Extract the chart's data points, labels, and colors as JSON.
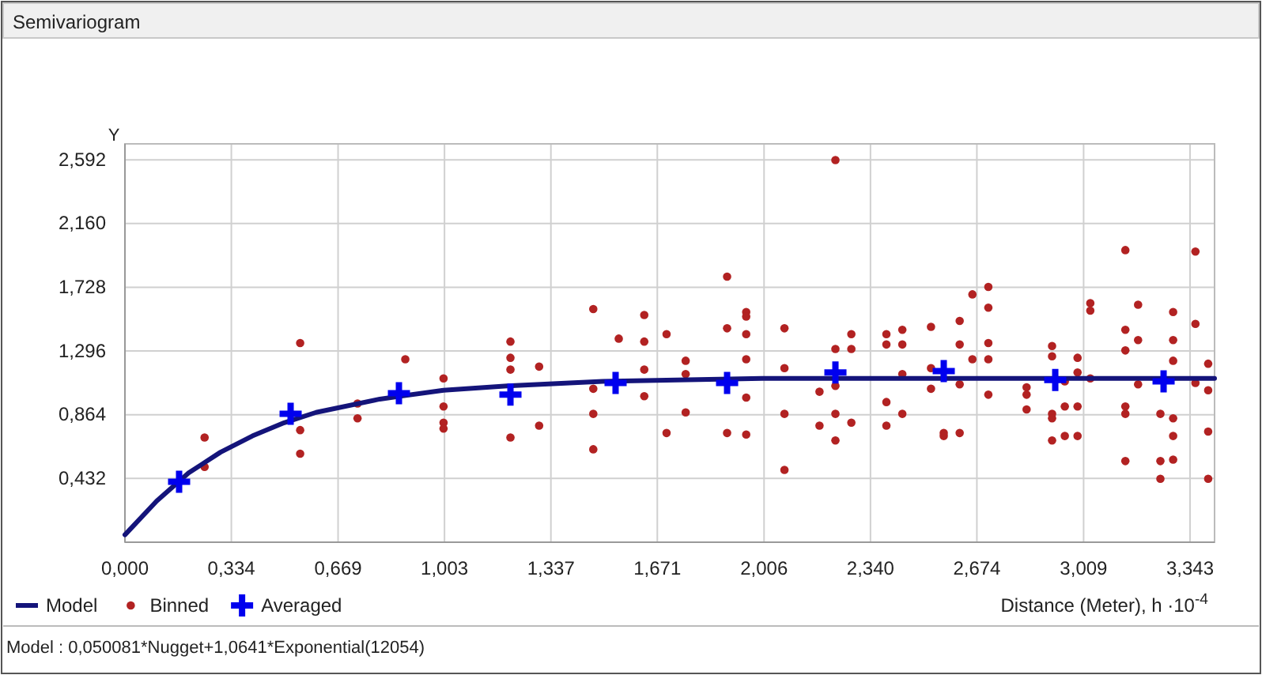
{
  "chart_data": {
    "type": "scatter",
    "title": "Semivariogram",
    "ylabel": "Y",
    "xlabel": "Distance (Meter), h ·10$^{-4}$",
    "annotations": [
      "Model : 0,050081*Nugget+1,0641*Exponential(12054)"
    ],
    "xlim": [
      0,
      3.42
    ],
    "ylim": [
      0,
      2.7
    ],
    "xticks": [
      {
        "value": 0,
        "label": "0,000"
      },
      {
        "value": 0.334,
        "label": "0,334"
      },
      {
        "value": 0.669,
        "label": "0,669"
      },
      {
        "value": 1.003,
        "label": "1,003"
      },
      {
        "value": 1.337,
        "label": "1,337"
      },
      {
        "value": 1.671,
        "label": "1,671"
      },
      {
        "value": 2.006,
        "label": "2,006"
      },
      {
        "value": 2.34,
        "label": "2,340"
      },
      {
        "value": 2.674,
        "label": "2,674"
      },
      {
        "value": 3.009,
        "label": "3,009"
      },
      {
        "value": 3.343,
        "label": "3,343"
      }
    ],
    "yticks": [
      {
        "value": 0.432,
        "label": "0,432"
      },
      {
        "value": 0.864,
        "label": "0,864"
      },
      {
        "value": 1.296,
        "label": "1,296"
      },
      {
        "value": 1.728,
        "label": "1,728"
      },
      {
        "value": 2.16,
        "label": "2,160"
      },
      {
        "value": 2.592,
        "label": "2,592"
      }
    ],
    "grid": true,
    "legend": "bottom left",
    "series": [
      {
        "name": "Model",
        "type": "line",
        "color": "#14147a",
        "marker": "none",
        "line_style": "solid",
        "x": [
          0,
          0.1,
          0.2,
          0.3,
          0.4,
          0.5,
          0.6,
          0.8,
          1.0,
          1.2,
          1.5,
          2.0,
          2.5,
          3.0,
          3.42
        ],
        "values": [
          0.05,
          0.28,
          0.47,
          0.61,
          0.72,
          0.81,
          0.88,
          0.97,
          1.03,
          1.06,
          1.09,
          1.11,
          1.11,
          1.11,
          1.11
        ]
      },
      {
        "name": "Binned",
        "color": "#b22222",
        "marker": "circle",
        "x": [
          0.25,
          0.25,
          0.55,
          0.55,
          0.55,
          0.73,
          0.73,
          0.88,
          1.0,
          1.0,
          1.0,
          1.0,
          1.21,
          1.21,
          1.21,
          1.21,
          1.3,
          1.3,
          1.47,
          1.47,
          1.47,
          1.47,
          1.55,
          1.63,
          1.63,
          1.63,
          1.63,
          1.7,
          1.7,
          1.76,
          1.76,
          1.76,
          1.89,
          1.89,
          1.89,
          1.95,
          1.95,
          1.95,
          1.95,
          1.95,
          1.95,
          2.07,
          2.07,
          2.07,
          2.07,
          2.18,
          2.18,
          2.23,
          2.23,
          2.23,
          2.23,
          2.23,
          2.28,
          2.28,
          2.28,
          2.39,
          2.39,
          2.39,
          2.39,
          2.44,
          2.44,
          2.44,
          2.44,
          2.53,
          2.53,
          2.53,
          2.57,
          2.57,
          2.62,
          2.62,
          2.62,
          2.62,
          2.66,
          2.66,
          2.71,
          2.71,
          2.71,
          2.71,
          2.71,
          2.83,
          2.83,
          2.83,
          2.91,
          2.91,
          2.91,
          2.91,
          2.91,
          2.95,
          2.95,
          2.95,
          2.99,
          2.99,
          2.99,
          2.99,
          3.03,
          3.03,
          3.03,
          3.14,
          3.14,
          3.14,
          3.14,
          3.14,
          3.14,
          3.18,
          3.18,
          3.18,
          3.25,
          3.25,
          3.25,
          3.29,
          3.29,
          3.29,
          3.29,
          3.29,
          3.29,
          3.36,
          3.36,
          3.36,
          3.4,
          3.4,
          3.4,
          3.4
        ],
        "values": [
          0.71,
          0.51,
          1.35,
          0.76,
          0.6,
          0.84,
          0.94,
          1.24,
          1.11,
          0.92,
          0.81,
          0.77,
          1.36,
          1.25,
          1.17,
          0.71,
          1.19,
          0.79,
          1.58,
          1.04,
          0.87,
          0.63,
          1.38,
          1.54,
          1.36,
          1.17,
          0.99,
          1.41,
          0.74,
          1.23,
          1.14,
          0.88,
          1.8,
          1.45,
          0.74,
          1.56,
          1.53,
          1.41,
          1.24,
          0.98,
          0.73,
          1.45,
          1.18,
          0.87,
          0.49,
          1.02,
          0.79,
          2.59,
          1.31,
          1.06,
          0.87,
          0.69,
          1.41,
          1.31,
          0.81,
          1.41,
          1.34,
          0.95,
          0.79,
          1.44,
          1.34,
          1.14,
          0.87,
          1.46,
          1.18,
          1.04,
          0.74,
          0.72,
          1.5,
          1.34,
          1.07,
          0.74,
          1.68,
          1.24,
          1.73,
          1.59,
          1.35,
          1.24,
          1.0,
          1.05,
          1.0,
          0.9,
          1.33,
          1.26,
          0.87,
          0.84,
          0.69,
          1.09,
          0.92,
          0.72,
          1.25,
          1.15,
          0.92,
          0.72,
          1.62,
          1.57,
          1.11,
          1.98,
          1.44,
          1.3,
          0.92,
          0.87,
          0.55,
          1.61,
          1.37,
          1.07,
          0.87,
          0.55,
          0.43,
          1.56,
          1.37,
          1.23,
          0.84,
          0.72,
          0.56,
          1.97,
          1.48,
          1.08,
          1.21,
          1.03,
          0.75,
          0.43
        ]
      },
      {
        "name": "Averaged",
        "color": "#0000ee",
        "marker": "cross",
        "x": [
          0.17,
          0.52,
          0.86,
          1.21,
          1.54,
          1.89,
          2.23,
          2.57,
          2.92,
          3.26
        ],
        "values": [
          0.41,
          0.87,
          1.01,
          1.0,
          1.08,
          1.08,
          1.15,
          1.16,
          1.1,
          1.09
        ]
      }
    ]
  }
}
